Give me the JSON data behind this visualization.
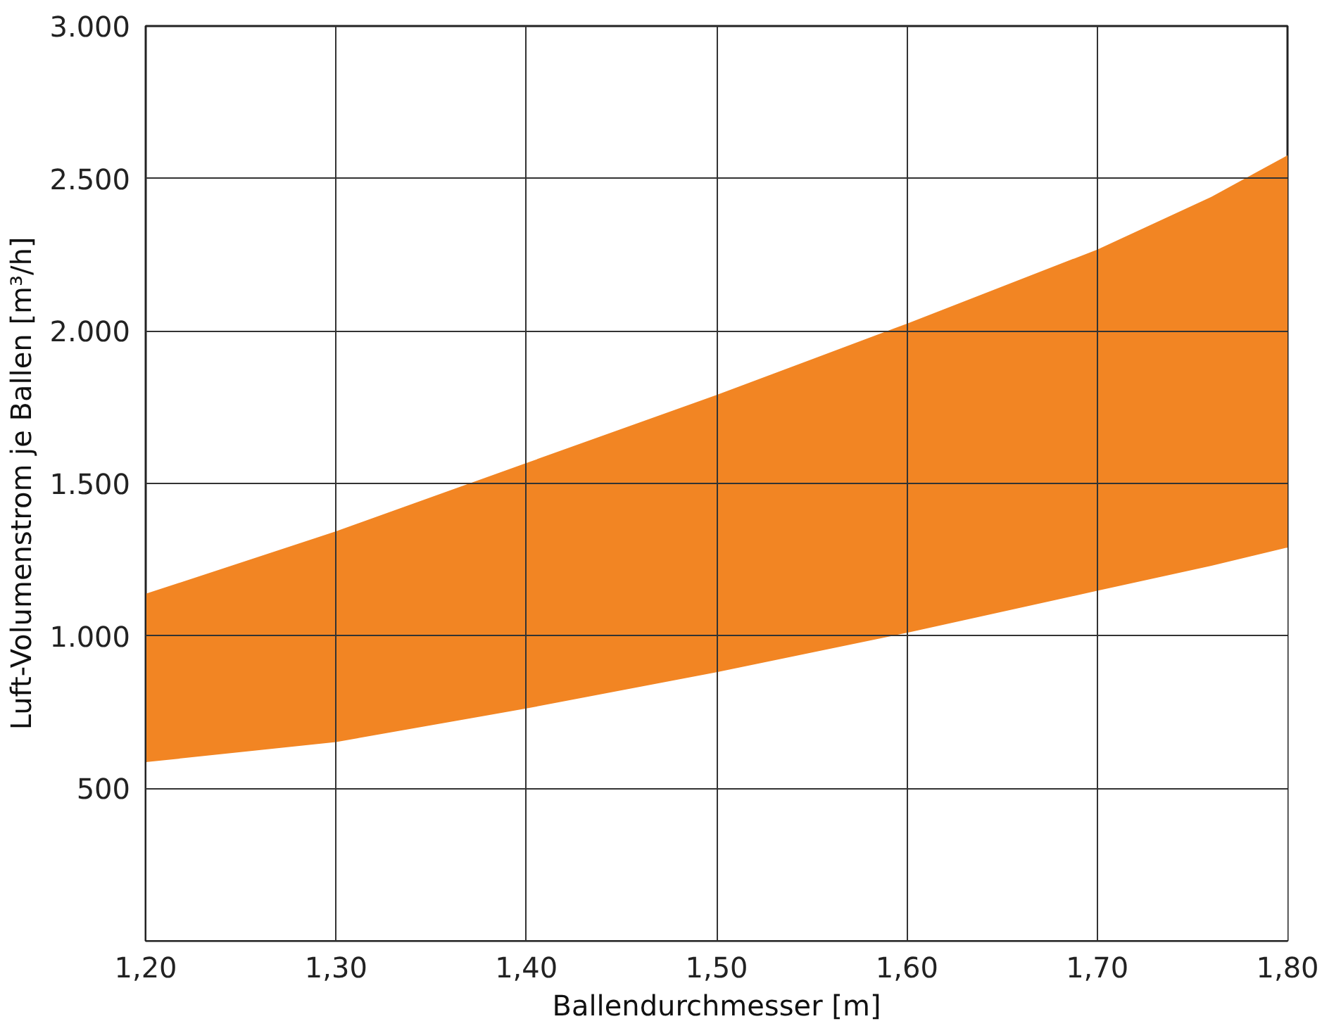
{
  "chart_data": {
    "type": "area",
    "stacked": true,
    "xlabel": "Ballendurchmesser [m]",
    "ylabel": "Luft-Volumenstrom je Ballen [m³/h]",
    "x": [
      1.2,
      1.3,
      1.4,
      1.5,
      1.6,
      1.7,
      1.76,
      1.8
    ],
    "series": [
      {
        "color": "#ffffff",
        "values": [
          586,
          652,
          762,
          881,
          1010,
          1148,
          1230,
          1290
        ]
      },
      {
        "color": "#f28523",
        "values": [
          552,
          691,
          805,
          909,
          1014,
          1119,
          1210,
          1286
        ]
      }
    ],
    "xlim": [
      1.2,
      1.8
    ],
    "xticks": [
      {
        "value": 1.2,
        "label": "1,20"
      },
      {
        "value": 1.3,
        "label": "1,30"
      },
      {
        "value": 1.4,
        "label": "1,40"
      },
      {
        "value": 1.5,
        "label": "1,50"
      },
      {
        "value": 1.6,
        "label": "1,60"
      },
      {
        "value": 1.7,
        "label": "1,70"
      },
      {
        "value": 1.8,
        "label": "1,80"
      }
    ],
    "ylim": [
      0,
      3000
    ],
    "yticks": [
      500,
      {
        "value": 1000,
        "label": "1.000"
      },
      {
        "value": 1500,
        "label": "1.500"
      },
      {
        "value": 2000,
        "label": "2.000"
      },
      {
        "value": 2500,
        "label": "2.500"
      },
      {
        "value": 3000,
        "label": "3.000"
      }
    ],
    "grid": true
  }
}
